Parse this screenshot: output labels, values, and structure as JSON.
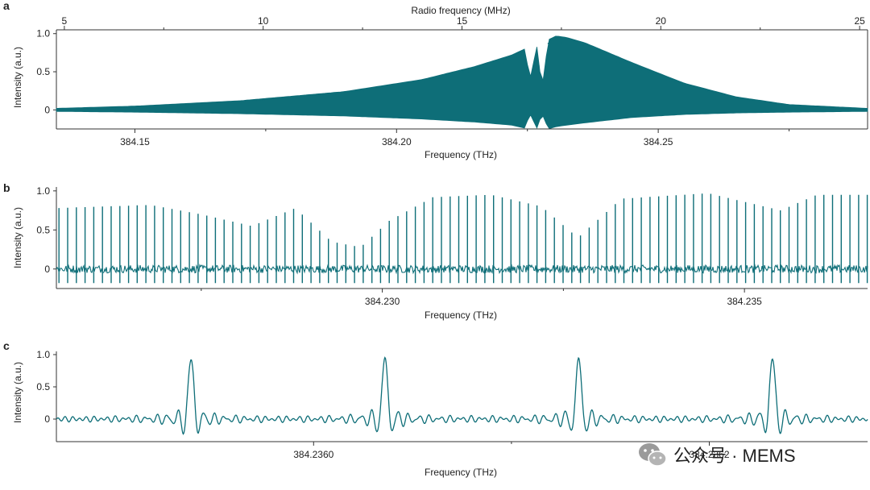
{
  "colors": {
    "trace": "#0e6e78",
    "axis": "#333333",
    "watermark": "#8a8a8a"
  },
  "chart_data": [
    {
      "panel": "a",
      "type": "line",
      "xlabel": "Frequency (THz)",
      "ylabel": "Intensity (a.u.)",
      "xlim": [
        384.135,
        384.29
      ],
      "ylim": [
        -0.25,
        1.05
      ],
      "x_ticks": [
        {
          "value": 384.15,
          "label": "384.15"
        },
        {
          "value": 384.2,
          "label": "384.20"
        },
        {
          "value": 384.25,
          "label": "384.25"
        }
      ],
      "x_minor_ticks": [
        384.175,
        384.225,
        384.275
      ],
      "y_ticks": [
        {
          "value": 0,
          "label": "0"
        },
        {
          "value": 0.5,
          "label": "0.5"
        },
        {
          "value": 1.0,
          "label": "1.0"
        }
      ],
      "top_axis": {
        "label": "Radio frequency (MHz)",
        "lim": [
          4.8,
          25.2
        ],
        "ticks": [
          {
            "value": 5,
            "label": "5"
          },
          {
            "value": 10,
            "label": "10"
          },
          {
            "value": 15,
            "label": "15"
          },
          {
            "value": 20,
            "label": "20"
          },
          {
            "value": 25,
            "label": "25"
          }
        ],
        "minor_ticks": [
          7.5,
          12.5,
          17.5,
          22.5
        ]
      },
      "envelope": {
        "x": [
          384.135,
          384.15,
          384.17,
          384.19,
          384.205,
          384.215,
          384.222,
          384.2245,
          384.2255,
          384.2268,
          384.2278,
          384.229,
          384.2305,
          384.2325,
          384.236,
          384.245,
          384.255,
          384.265,
          384.275,
          384.29
        ],
        "upper": [
          0.02,
          0.05,
          0.12,
          0.24,
          0.4,
          0.57,
          0.72,
          0.8,
          0.4,
          0.83,
          0.28,
          0.92,
          0.97,
          0.95,
          0.88,
          0.62,
          0.35,
          0.17,
          0.07,
          0.02
        ],
        "lower": [
          -0.02,
          -0.03,
          -0.05,
          -0.08,
          -0.12,
          -0.16,
          -0.2,
          -0.24,
          -0.05,
          -0.24,
          -0.05,
          -0.25,
          -0.22,
          -0.2,
          -0.17,
          -0.1,
          -0.06,
          -0.04,
          -0.03,
          -0.02
        ]
      }
    },
    {
      "panel": "b",
      "type": "line",
      "xlabel": "Frequency (THz)",
      "ylabel": "Intensity (a.u.)",
      "xlim": [
        384.2255,
        384.2367
      ],
      "ylim": [
        -0.25,
        1.05
      ],
      "x_ticks": [
        {
          "value": 384.23,
          "label": "384.230"
        },
        {
          "value": 384.235,
          "label": "384.235"
        }
      ],
      "x_minor_ticks": [
        384.2275,
        384.2325
      ],
      "y_ticks": [
        {
          "value": 0,
          "label": "0"
        },
        {
          "value": 0.5,
          "label": "0.5"
        },
        {
          "value": 1.0,
          "label": "1.0"
        }
      ],
      "peak_spacing_thz": 0.00012,
      "peak_envelope": {
        "x": [
          384.2255,
          384.2268,
          384.2275,
          384.2282,
          384.2288,
          384.2293,
          384.2297,
          384.2301,
          384.2307,
          384.2315,
          384.2322,
          384.2327,
          384.2333,
          384.2345,
          384.2355,
          384.236,
          384.2367
        ],
        "y": [
          0.78,
          0.82,
          0.7,
          0.55,
          0.78,
          0.35,
          0.28,
          0.62,
          0.92,
          0.95,
          0.8,
          0.4,
          0.9,
          0.97,
          0.75,
          0.95,
          0.95
        ]
      },
      "noise_amplitude": 0.05
    },
    {
      "panel": "c",
      "type": "line",
      "xlabel": "Frequency (THz)",
      "ylabel": "Intensity (a.u.)",
      "xlim": [
        384.23587,
        384.23628
      ],
      "ylim": [
        -0.35,
        1.05
      ],
      "x_ticks": [
        {
          "value": 384.236,
          "label": "384.2360"
        },
        {
          "value": 384.2362,
          "label": "384.2362"
        }
      ],
      "x_minor_ticks": [
        384.2361,
        384.2363
      ],
      "y_ticks": [
        {
          "value": 0,
          "label": "0"
        },
        {
          "value": 0.5,
          "label": "0.5"
        },
        {
          "value": 1.0,
          "label": "1.0"
        }
      ],
      "peaks": [
        {
          "x": 384.235938,
          "y": 0.95
        },
        {
          "x": 384.236036,
          "y": 0.95
        },
        {
          "x": 384.236134,
          "y": 0.94
        },
        {
          "x": 384.236232,
          "y": 0.95
        }
      ],
      "ringing_amplitude": 0.03
    }
  ],
  "watermark": {
    "text": "公众号 · MEMS",
    "icon": "wechat-icon"
  }
}
